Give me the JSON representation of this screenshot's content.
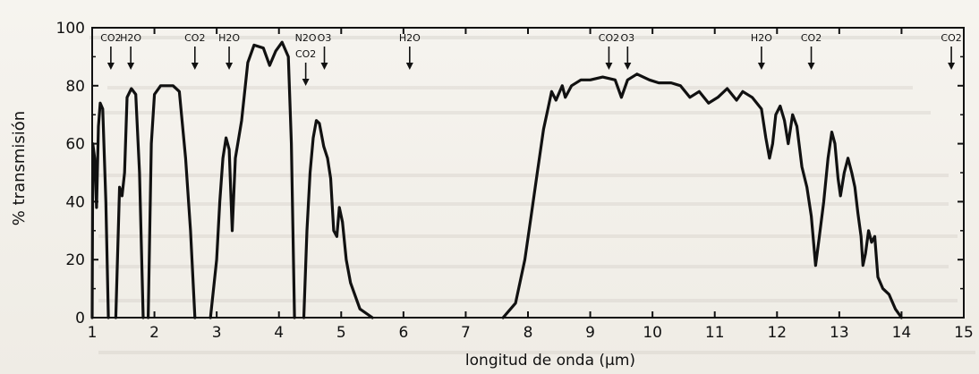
{
  "chart_data": {
    "type": "line",
    "title": "",
    "xlabel": "longitud de onda (µm)",
    "ylabel": "% transmisión",
    "xlim": [
      1,
      15
    ],
    "ylim": [
      0,
      100
    ],
    "x_ticks": [
      1,
      2,
      3,
      4,
      5,
      6,
      7,
      8,
      9,
      10,
      11,
      12,
      13,
      14,
      15
    ],
    "y_ticks": [
      0,
      20,
      40,
      60,
      80,
      100
    ],
    "grid": false,
    "legend": "none",
    "line_color": "#111111",
    "annotations": [
      {
        "label": "CO2",
        "x": 1.3
      },
      {
        "label": "H2O",
        "x": 1.62
      },
      {
        "label": "CO2",
        "x": 2.65
      },
      {
        "label": "H2O",
        "x": 3.2
      },
      {
        "label": "N2O",
        "x": 4.43
      },
      {
        "label": "CO2",
        "x": 4.43
      },
      {
        "label": "O3",
        "x": 4.73
      },
      {
        "label": "H2O",
        "x": 6.1
      },
      {
        "label": "CO2",
        "x": 9.3
      },
      {
        "label": "O3",
        "x": 9.6
      },
      {
        "label": "H2O",
        "x": 11.75
      },
      {
        "label": "CO2",
        "x": 12.55
      },
      {
        "label": "CO2",
        "x": 14.8
      }
    ],
    "series": [
      {
        "values": [
          [
            1.0,
            0
          ],
          [
            1.01,
            60
          ],
          [
            1.04,
            55
          ],
          [
            1.07,
            38
          ],
          [
            1.1,
            66
          ],
          [
            1.13,
            74
          ],
          [
            1.17,
            72
          ],
          [
            1.22,
            40
          ],
          [
            1.26,
            0
          ]
        ]
      },
      {
        "values": [
          [
            1.38,
            0
          ],
          [
            1.44,
            45
          ],
          [
            1.48,
            42
          ],
          [
            1.52,
            50
          ],
          [
            1.56,
            76
          ],
          [
            1.63,
            79
          ],
          [
            1.7,
            77
          ],
          [
            1.76,
            50
          ],
          [
            1.82,
            0
          ]
        ]
      },
      {
        "values": [
          [
            1.9,
            0
          ],
          [
            1.95,
            60
          ],
          [
            2.0,
            77
          ],
          [
            2.1,
            80
          ],
          [
            2.3,
            80
          ],
          [
            2.4,
            78
          ],
          [
            2.5,
            55
          ],
          [
            2.58,
            30
          ],
          [
            2.65,
            0
          ]
        ]
      },
      {
        "values": [
          [
            2.9,
            0
          ],
          [
            3.0,
            20
          ],
          [
            3.05,
            40
          ],
          [
            3.1,
            55
          ],
          [
            3.15,
            62
          ],
          [
            3.2,
            58
          ],
          [
            3.25,
            30
          ],
          [
            3.3,
            55
          ],
          [
            3.4,
            68
          ],
          [
            3.5,
            88
          ],
          [
            3.6,
            94
          ],
          [
            3.75,
            93
          ],
          [
            3.85,
            87
          ],
          [
            3.95,
            92
          ],
          [
            4.05,
            95
          ],
          [
            4.15,
            90
          ],
          [
            4.2,
            60
          ],
          [
            4.25,
            0
          ]
        ]
      },
      {
        "values": [
          [
            4.4,
            0
          ],
          [
            4.45,
            30
          ],
          [
            4.5,
            50
          ],
          [
            4.55,
            62
          ],
          [
            4.6,
            68
          ],
          [
            4.65,
            67
          ],
          [
            4.72,
            59
          ],
          [
            4.78,
            55
          ],
          [
            4.83,
            48
          ],
          [
            4.88,
            30
          ],
          [
            4.93,
            28
          ],
          [
            4.97,
            38
          ],
          [
            5.02,
            33
          ],
          [
            5.08,
            20
          ],
          [
            5.15,
            12
          ],
          [
            5.3,
            3
          ],
          [
            5.5,
            0
          ]
        ]
      },
      {
        "values": [
          [
            7.6,
            0
          ],
          [
            7.8,
            5
          ],
          [
            7.95,
            20
          ],
          [
            8.05,
            35
          ],
          [
            8.15,
            50
          ],
          [
            8.25,
            65
          ],
          [
            8.32,
            72
          ],
          [
            8.38,
            78
          ],
          [
            8.45,
            75
          ],
          [
            8.55,
            80
          ],
          [
            8.6,
            76
          ],
          [
            8.7,
            80
          ],
          [
            8.85,
            82
          ],
          [
            9.0,
            82
          ],
          [
            9.2,
            83
          ],
          [
            9.4,
            82
          ],
          [
            9.5,
            76
          ],
          [
            9.6,
            82
          ],
          [
            9.75,
            84
          ],
          [
            9.95,
            82
          ],
          [
            10.1,
            81
          ],
          [
            10.3,
            81
          ],
          [
            10.45,
            80
          ],
          [
            10.6,
            76
          ],
          [
            10.75,
            78
          ],
          [
            10.9,
            74
          ],
          [
            11.05,
            76
          ],
          [
            11.2,
            79
          ],
          [
            11.35,
            75
          ],
          [
            11.45,
            78
          ],
          [
            11.6,
            76
          ],
          [
            11.75,
            72
          ],
          [
            11.82,
            62
          ],
          [
            11.88,
            55
          ],
          [
            11.93,
            60
          ],
          [
            11.98,
            70
          ],
          [
            12.05,
            73
          ],
          [
            12.12,
            68
          ],
          [
            12.18,
            60
          ],
          [
            12.25,
            70
          ],
          [
            12.32,
            66
          ],
          [
            12.4,
            52
          ],
          [
            12.48,
            45
          ],
          [
            12.55,
            35
          ],
          [
            12.62,
            18
          ],
          [
            12.68,
            28
          ],
          [
            12.75,
            40
          ],
          [
            12.82,
            55
          ],
          [
            12.88,
            64
          ],
          [
            12.93,
            60
          ],
          [
            12.98,
            48
          ],
          [
            13.02,
            42
          ],
          [
            13.08,
            50
          ],
          [
            13.14,
            55
          ],
          [
            13.2,
            50
          ],
          [
            13.25,
            45
          ],
          [
            13.3,
            36
          ],
          [
            13.35,
            28
          ],
          [
            13.38,
            18
          ],
          [
            13.42,
            22
          ],
          [
            13.47,
            30
          ],
          [
            13.52,
            26
          ],
          [
            13.57,
            28
          ],
          [
            13.62,
            14
          ],
          [
            13.7,
            10
          ],
          [
            13.8,
            8
          ],
          [
            13.9,
            3
          ],
          [
            14.0,
            0
          ]
        ]
      }
    ]
  }
}
